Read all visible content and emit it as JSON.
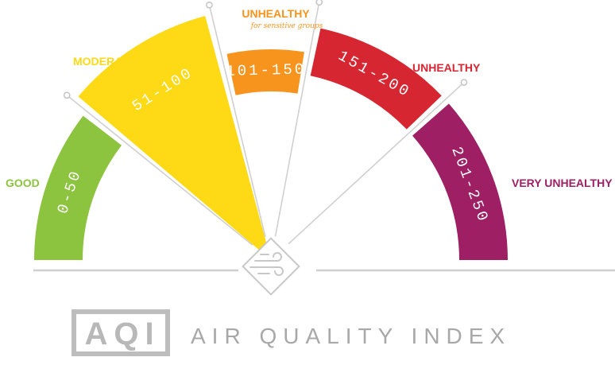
{
  "gauge": {
    "segments": [
      {
        "id": "good",
        "range": "0-50",
        "category": "GOOD",
        "subtitle": "",
        "color": "#8cc43f"
      },
      {
        "id": "moderate",
        "range": "51-100",
        "category": "MODERATE",
        "subtitle": "",
        "color": "#fdd916"
      },
      {
        "id": "usg",
        "range": "101-150",
        "category": "UNHEALTHY",
        "subtitle": "for sensitive groups",
        "color": "#f7941d"
      },
      {
        "id": "unhealthy",
        "range": "151-200",
        "category": "UNHEALTHY",
        "subtitle": "",
        "color": "#d62631"
      },
      {
        "id": "very-unhealthy",
        "range": "201-250",
        "category": "VERY UNHEALTHY",
        "subtitle": "",
        "color": "#9e1f63"
      }
    ],
    "highlighted_segment": "moderate",
    "center_icon": "wind-icon"
  },
  "logo": {
    "abbr": "AQI",
    "full": "AIR QUALITY INDEX"
  },
  "colors": {
    "line": "#cfcfcf",
    "frame": "#bdbdbd"
  }
}
